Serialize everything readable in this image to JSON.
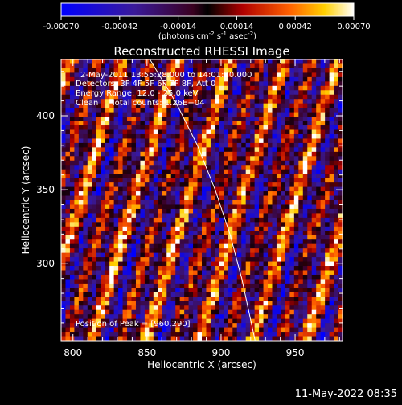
{
  "chart_data": {
    "type": "heatmap",
    "title": "Reconstructed RHESSI Image",
    "xlabel": "Heliocentric X (arcsec)",
    "ylabel": "Heliocentric Y (arcsec)",
    "x_range": [
      792,
      982
    ],
    "y_range": [
      248,
      438
    ],
    "x_ticks": [
      {
        "value": 800,
        "label": "800"
      },
      {
        "value": 850,
        "label": "850"
      },
      {
        "value": 900,
        "label": "900"
      },
      {
        "value": 950,
        "label": "950"
      }
    ],
    "y_ticks": [
      {
        "value": 300,
        "label": "300"
      },
      {
        "value": 350,
        "label": "350"
      },
      {
        "value": 400,
        "label": "400"
      }
    ],
    "colorbar": {
      "range": [
        -0.0007,
        0.0007
      ],
      "tick_labels": [
        "-0.00070",
        "-0.00042",
        "-0.00014",
        "0.00014",
        "0.00042",
        "0.00070"
      ],
      "unit_main": "(photons cm",
      "unit_exp1": "-2",
      "unit_mid": " s",
      "unit_exp2": "-1",
      "unit_mid2": " asec",
      "unit_exp3": "-2",
      "unit_end": ")"
    },
    "annotations": [
      "2-May-2011 13:55:28.000 to 14:01:20.000",
      "Detectors: 3F 4F 5F 6F 7F 8F, Att 0",
      "Energy Range: 12.0 - 25.0 keV",
      "Clean     Total counts: 1.26E+04"
    ],
    "peak_label": "Position of Peak = [960,290]",
    "peak_position": [
      960,
      290
    ],
    "limb_curve": [
      [
        852,
        438
      ],
      [
        870,
        408
      ],
      [
        884,
        380
      ],
      [
        896,
        350
      ],
      [
        906,
        320
      ],
      [
        914,
        290
      ],
      [
        920,
        262
      ],
      [
        923,
        248
      ]
    ],
    "grid": false,
    "legend": "none"
  },
  "footer": {
    "timestamp": "11-May-2022 08:35"
  }
}
